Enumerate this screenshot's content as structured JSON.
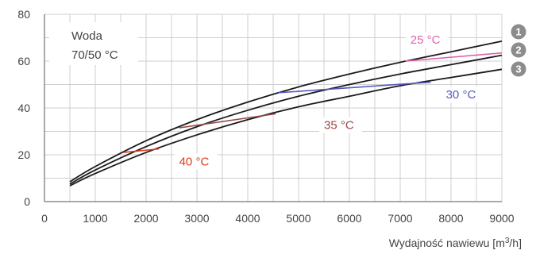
{
  "chart_data": {
    "type": "line",
    "title": "",
    "xlabel": "Wydajność nawiewu [m",
    "xlabel_sup": "3",
    "xlabel_end": "/h]",
    "ylabel": "",
    "xlim": [
      0,
      9000
    ],
    "ylim": [
      0,
      80
    ],
    "x_ticks": [
      "0",
      "1000",
      "2000",
      "3000",
      "4000",
      "5000",
      "6000",
      "7000",
      "8000",
      "9000"
    ],
    "y_ticks": [
      "0",
      "20",
      "40",
      "60",
      "80"
    ],
    "grid": true,
    "annotation": {
      "line1": "Woda",
      "line2": "70/50 °C"
    },
    "series": [
      {
        "name": "1",
        "color": "#1a1a1a",
        "x": [
          500,
          1000,
          2000,
          3000,
          4000,
          5000,
          6000,
          7000,
          8000,
          9000
        ],
        "y": [
          8.5,
          15,
          26,
          35,
          42.5,
          49,
          54.5,
          59.5,
          64,
          68.5
        ]
      },
      {
        "name": "2",
        "color": "#1a1a1a",
        "x": [
          500,
          1000,
          2000,
          3000,
          4000,
          5000,
          6000,
          7000,
          8000,
          9000
        ],
        "y": [
          7.5,
          13.5,
          23.5,
          32,
          39,
          45,
          50,
          54.5,
          58.5,
          62.5
        ]
      },
      {
        "name": "3",
        "color": "#1a1a1a",
        "x": [
          500,
          1000,
          2000,
          3000,
          4000,
          5000,
          6000,
          7000,
          8000,
          9000
        ],
        "y": [
          6.8,
          12,
          21,
          28.5,
          35,
          40.5,
          45,
          49.5,
          53,
          56.5
        ]
      }
    ],
    "temperature_lines": [
      {
        "label": "25 °C",
        "color": "#e060b0",
        "x": [
          7100,
          9000
        ],
        "y": [
          60,
          63.5
        ],
        "label_x": 7200,
        "label_y": 67.5
      },
      {
        "label": "30 °C",
        "color": "#5858c0",
        "x": [
          4600,
          7600
        ],
        "y": [
          46.5,
          51
        ],
        "label_x": 7900,
        "label_y": 44
      },
      {
        "label": "35 °C",
        "color": "#9a4848",
        "x": [
          2650,
          4550
        ],
        "y": [
          31.5,
          37.5
        ],
        "label_x": 5500,
        "label_y": 31
      },
      {
        "label": "40 °C",
        "color": "#e03a1a",
        "x": [
          1550,
          2250
        ],
        "y": [
          21,
          22.5
        ],
        "label_x": 2650,
        "label_y": 15.5
      }
    ],
    "series_markers": [
      "1",
      "2",
      "3"
    ],
    "marker_color": "#8c8c8c"
  }
}
